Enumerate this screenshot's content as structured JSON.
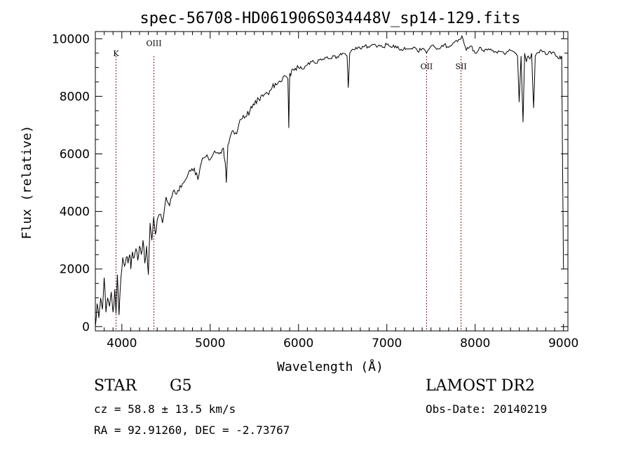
{
  "chart_data": {
    "type": "line",
    "title": "spec-56708-HD061906S034448V_sp14-129.fits",
    "xlabel": "Wavelength (Å)",
    "ylabel": "Flux (relative)",
    "xlim": [
      3700,
      9050
    ],
    "ylim": [
      -150,
      10250
    ],
    "xticks": [
      4000,
      5000,
      6000,
      7000,
      8000,
      9000
    ],
    "xtick_labels": [
      "4000",
      "5000",
      "6000",
      "7000",
      "8000",
      "9000"
    ],
    "yticks": [
      0,
      2000,
      4000,
      6000,
      8000,
      10000
    ],
    "ytick_labels": [
      "0",
      "2000",
      "4000",
      "6000",
      "8000",
      "10000"
    ],
    "grid": false,
    "line_color": "#000000",
    "marker_color": "#8b1a1a",
    "lines": [
      {
        "label": "K",
        "x": 3934,
        "label_y": 9400
      },
      {
        "label": "OIII",
        "x": 4363,
        "label_y": 9750
      },
      {
        "label": "OII",
        "x": 7450,
        "label_y": 8950
      },
      {
        "label": "SII",
        "x": 7840,
        "label_y": 8950
      }
    ],
    "series": [
      {
        "name": "flux",
        "x": [
          3700,
          3720,
          3740,
          3760,
          3780,
          3800,
          3820,
          3840,
          3860,
          3880,
          3900,
          3920,
          3934,
          3950,
          3968,
          3990,
          4010,
          4030,
          4050,
          4070,
          4090,
          4102,
          4120,
          4140,
          4160,
          4180,
          4200,
          4220,
          4240,
          4260,
          4280,
          4300,
          4320,
          4340,
          4360,
          4380,
          4400,
          4430,
          4460,
          4500,
          4540,
          4580,
          4620,
          4660,
          4700,
          4740,
          4780,
          4820,
          4861,
          4900,
          4950,
          5000,
          5050,
          5100,
          5150,
          5170,
          5183,
          5200,
          5250,
          5300,
          5350,
          5400,
          5450,
          5500,
          5550,
          5600,
          5650,
          5700,
          5750,
          5800,
          5850,
          5880,
          5890,
          5900,
          5950,
          6000,
          6050,
          6100,
          6150,
          6200,
          6250,
          6300,
          6350,
          6400,
          6450,
          6500,
          6550,
          6563,
          6580,
          6600,
          6650,
          6700,
          6750,
          6800,
          6850,
          6900,
          6950,
          7000,
          7050,
          7100,
          7150,
          7200,
          7250,
          7300,
          7350,
          7400,
          7450,
          7500,
          7550,
          7600,
          7650,
          7700,
          7750,
          7800,
          7850,
          7900,
          7950,
          8000,
          8050,
          8100,
          8150,
          8200,
          8250,
          8300,
          8350,
          8400,
          8450,
          8480,
          8498,
          8520,
          8542,
          8560,
          8580,
          8600,
          8620,
          8640,
          8662,
          8680,
          8700,
          8750,
          8800,
          8850,
          8900,
          8950,
          8980,
          9000
        ],
        "values": [
          0,
          800,
          300,
          1000,
          600,
          1700,
          500,
          1000,
          700,
          1200,
          500,
          1300,
          450,
          1800,
          400,
          1700,
          2400,
          2100,
          2400,
          2200,
          2500,
          2000,
          2600,
          2400,
          2700,
          2300,
          2800,
          2500,
          3000,
          2200,
          2800,
          1800,
          3600,
          3000,
          3800,
          3200,
          3700,
          3900,
          3600,
          4500,
          4200,
          4700,
          4600,
          4900,
          5000,
          5200,
          5400,
          5500,
          5100,
          5700,
          5900,
          5800,
          6100,
          6000,
          6200,
          5700,
          5000,
          6300,
          6800,
          6700,
          7200,
          7300,
          7500,
          7700,
          7900,
          8000,
          8100,
          8300,
          8400,
          8500,
          8700,
          8600,
          6900,
          8800,
          8900,
          9000,
          8950,
          9100,
          9200,
          9150,
          9300,
          9350,
          9300,
          9400,
          9350,
          9500,
          9400,
          8300,
          9500,
          9600,
          9700,
          9650,
          9750,
          9700,
          9800,
          9750,
          9700,
          9800,
          9700,
          9750,
          9600,
          9700,
          9650,
          9700,
          9550,
          9650,
          9500,
          9750,
          9700,
          9650,
          9800,
          9700,
          9850,
          9900,
          10100,
          9600,
          9750,
          9500,
          9700,
          9550,
          9650,
          9600,
          9500,
          9550,
          9500,
          9600,
          9500,
          9400,
          7800,
          9400,
          7100,
          9500,
          9200,
          9400,
          9300,
          9500,
          7600,
          9400,
          9500,
          9600,
          9450,
          9550,
          9500,
          9300,
          9400,
          2000
        ]
      }
    ]
  },
  "info": {
    "object_class": "STAR",
    "subclass": "G5",
    "survey": "LAMOST DR2",
    "redshift": "cz = 58.8 ± 13.5 km/s",
    "obs_date": "Obs-Date: 20140219",
    "coords": "RA =  92.91260, DEC =  -2.73767"
  }
}
